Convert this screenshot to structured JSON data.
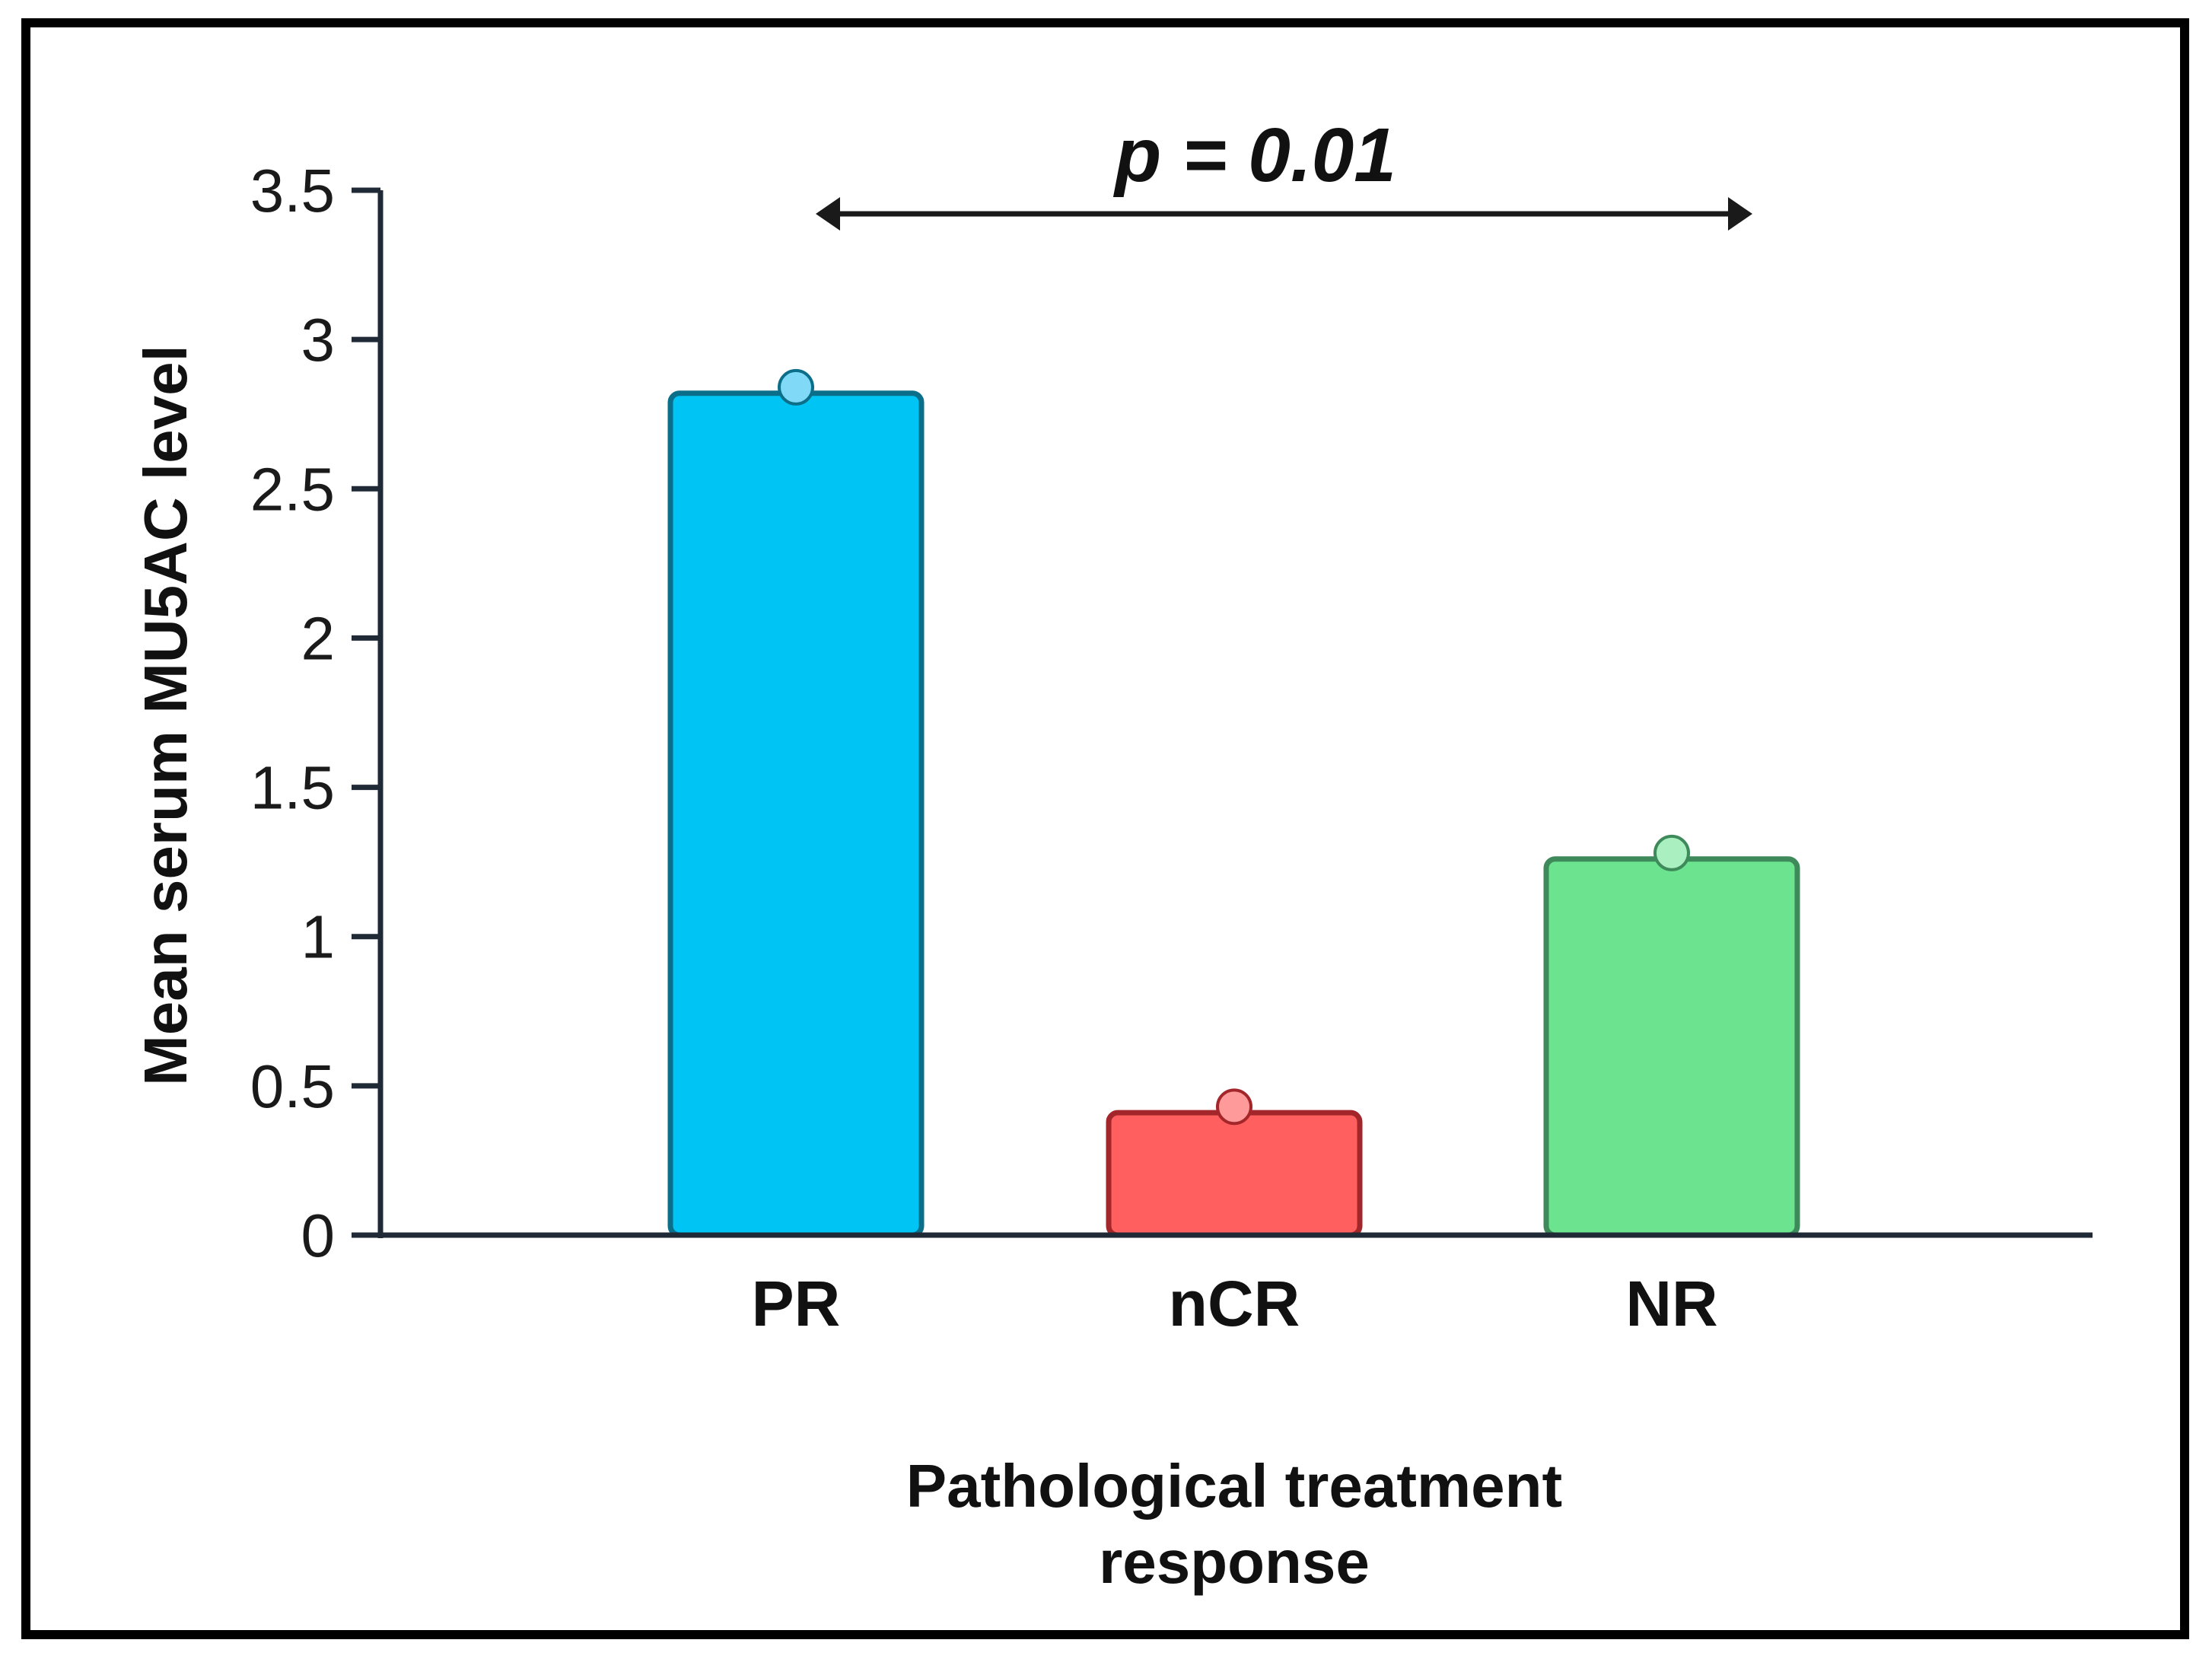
{
  "chart_data": {
    "type": "bar",
    "title": "",
    "categories": [
      "PR",
      "nCR",
      "NR"
    ],
    "values": [
      2.82,
      0.41,
      1.26
    ],
    "points": [
      2.84,
      0.43,
      1.28
    ],
    "colors": {
      "fill": [
        "#00c4f4",
        "#ff5f5f",
        "#6ce38f"
      ],
      "stroke": [
        "#0b6f8a",
        "#a3262b",
        "#3e8a5a"
      ],
      "point": [
        "#7fd9f7",
        "#ff9a9a",
        "#a9efbf"
      ]
    },
    "ylabel": "Mean serum MU5AC level",
    "xlabel_lines": [
      "Pathological treatment",
      "response"
    ],
    "ylim": [
      0,
      3.5
    ],
    "yticks": [
      0,
      0.5,
      1,
      1.5,
      2,
      2.5,
      3,
      3.5
    ],
    "ytick_labels": [
      "0",
      "0.5",
      "1",
      "1.5",
      "2",
      "2.5",
      "3",
      "3.5"
    ],
    "annotation": {
      "text": "p = 0.01",
      "from_category": "PR",
      "to_category": "NR",
      "style": "double-arrow"
    },
    "axis_color": "#1f2a36",
    "grid": false
  }
}
